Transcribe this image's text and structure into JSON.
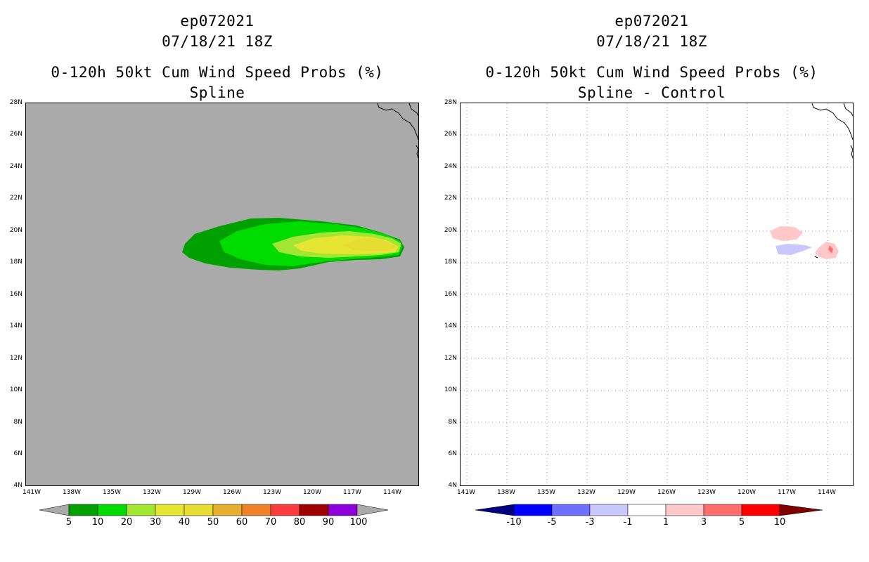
{
  "left_panel": {
    "storm_id": "ep072021",
    "datetime": "07/18/21 18Z",
    "title": "0-120h 50kt Cum Wind Speed Probs (%)",
    "subtitle": "Spline",
    "background_color": "#aaaaaa",
    "colorbar": {
      "colors": [
        "#00a000",
        "#00dc00",
        "#a0e632",
        "#e6e632",
        "#e6dc32",
        "#e6af2d",
        "#f08228",
        "#fa3c3c",
        "#a00000",
        "#8c00dc"
      ],
      "labels": [
        "5",
        "10",
        "20",
        "30",
        "40",
        "50",
        "60",
        "70",
        "80",
        "90",
        "100"
      ],
      "end_color": "#aaaaaa"
    }
  },
  "right_panel": {
    "storm_id": "ep072021",
    "datetime": "07/18/21 18Z",
    "title": "0-120h 50kt Cum Wind Speed Probs (%)",
    "subtitle": "Spline - Control",
    "background_color": "#ffffff",
    "colorbar": {
      "colors": [
        "#0000ff",
        "#6e6eff",
        "#c8c8ff",
        "#ffffff",
        "#ffc8c8",
        "#ff6e6e",
        "#ff0000"
      ],
      "labels": [
        "-10",
        "-5",
        "-3",
        "-1",
        "1",
        "3",
        "5",
        "10"
      ],
      "low_end_color": "#000080",
      "high_end_color": "#800000"
    }
  },
  "axes": {
    "lat_labels": [
      "28N",
      "26N",
      "24N",
      "22N",
      "20N",
      "18N",
      "16N",
      "14N",
      "12N",
      "10N",
      "8N",
      "6N",
      "4N"
    ],
    "lat_values": [
      28,
      26,
      24,
      22,
      20,
      18,
      16,
      14,
      12,
      10,
      8,
      6,
      4
    ],
    "lon_labels": [
      "141W",
      "138W",
      "135W",
      "132W",
      "129W",
      "126W",
      "123W",
      "120W",
      "117W",
      "114W"
    ],
    "lon_values": [
      -141,
      -138,
      -135,
      -132,
      -129,
      -126,
      -123,
      -120,
      -117,
      -114
    ],
    "lat_range": [
      4,
      28
    ],
    "lon_range": [
      -141.5,
      -111.5
    ]
  }
}
